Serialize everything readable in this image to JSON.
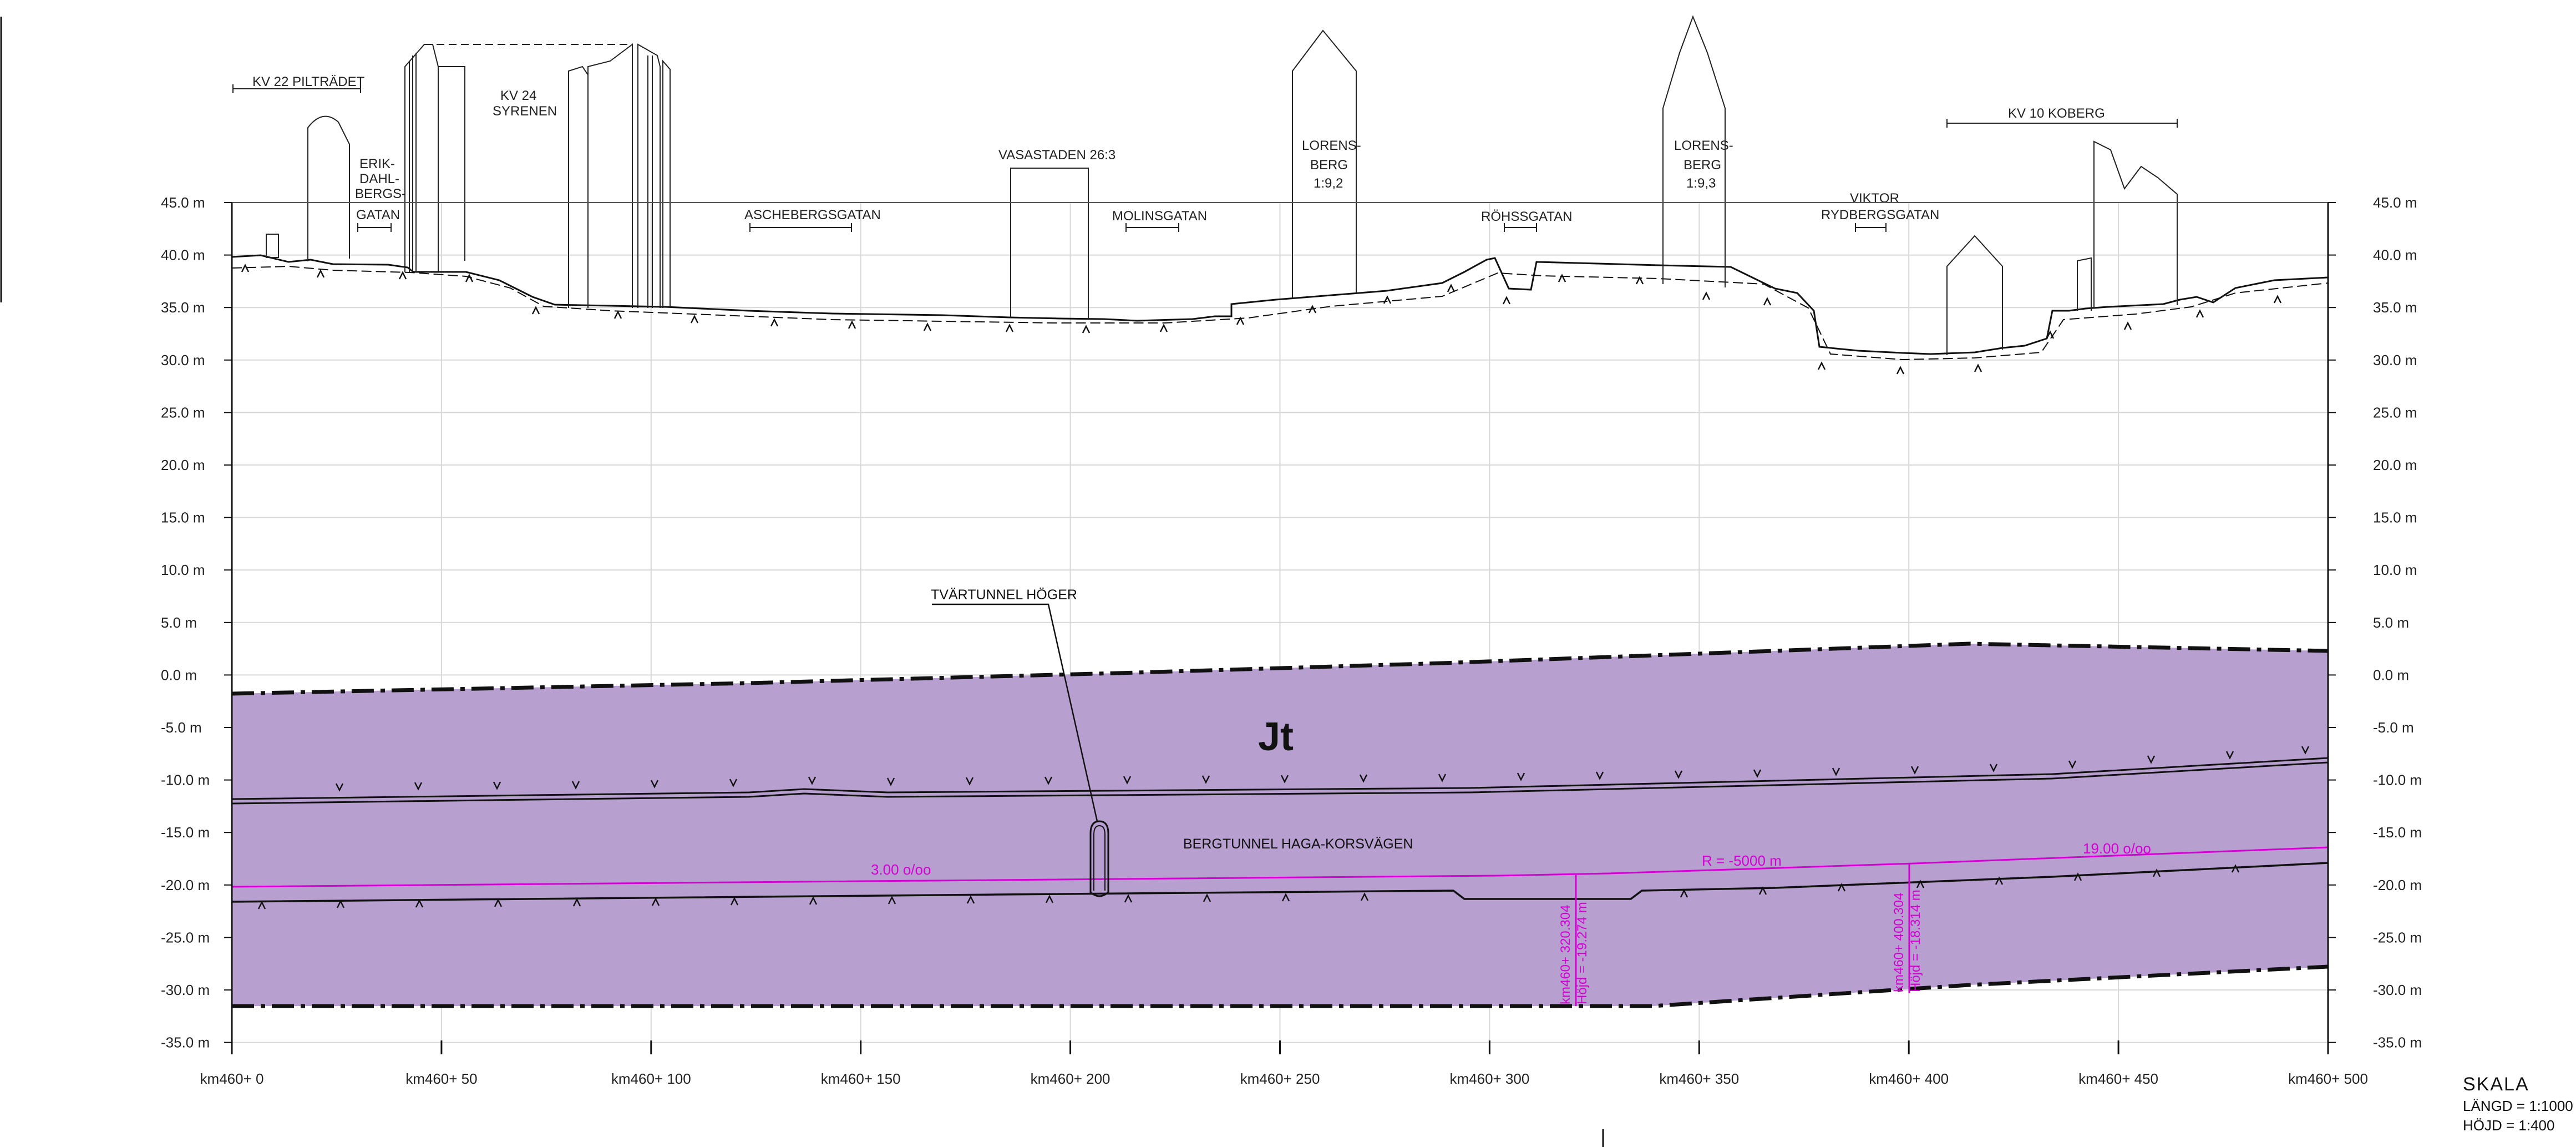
{
  "drawing": {
    "y_axis_labels": [
      "45.0 m",
      "40.0 m",
      "35.0 m",
      "30.0 m",
      "25.0 m",
      "20.0 m",
      "15.0 m",
      "10.0 m",
      "5.0 m",
      "0.0 m",
      "-5.0 m",
      "-10.0 m",
      "-15.0 m",
      "-20.0 m",
      "-25.0 m",
      "-30.0 m",
      "-35.0 m"
    ],
    "x_axis_labels": [
      "km460+ 0",
      "km460+ 50",
      "km460+ 100",
      "km460+ 150",
      "km460+ 200",
      "km460+ 250",
      "km460+ 300",
      "km460+ 350",
      "km460+ 400",
      "km460+ 450",
      "km460+ 500"
    ],
    "rock_class": "Jt",
    "tunnel_label": "BERGTUNNEL HAGA-KORSVÄGEN",
    "cross_tunnel_label": "TVÄRTUNNEL HÖGER",
    "gradient_left": "3.00 o/oo",
    "radius_label": "R = -5000 m",
    "gradient_right": "19.00 o/oo",
    "station_1": {
      "km": "km460+ 320.304",
      "height": "Höjd = -19.274 m"
    },
    "station_2": {
      "km": "km460+ 400.304",
      "height": "Höjd = -18.314 m"
    }
  },
  "surface_labels": {
    "kv22": "KV 22 PILTRÄDET",
    "erik": [
      "ERIK-",
      "DAHL-",
      "BERGS-",
      "GATAN"
    ],
    "kv24": [
      "KV 24",
      "SYRENEN"
    ],
    "aschebergsgatan": "ASCHEBERGSGATAN",
    "vasastaden": "VASASTADEN 26:3",
    "molinsgatan": "MOLINSGATAN",
    "lorensberg1": [
      "LORENS-",
      "BERG",
      "1:9,2"
    ],
    "rohssgatan": "RÖHSSGATAN",
    "lorensberg2": [
      "LORENS-",
      "BERG",
      "1:9,3"
    ],
    "viktor": [
      "VIKTOR",
      "RYDBERGSGATAN"
    ],
    "kv10": "KV 10 KOBERG"
  },
  "scale": {
    "title": "SKALA",
    "langd": "LÄNGD = 1:1000",
    "hojd": "HÖJD = 1:400"
  },
  "colors": {
    "rock_fill": "#b7a0cf",
    "alignment": "#d400d4",
    "line": "#111111",
    "grid": "#d8d8d8"
  }
}
